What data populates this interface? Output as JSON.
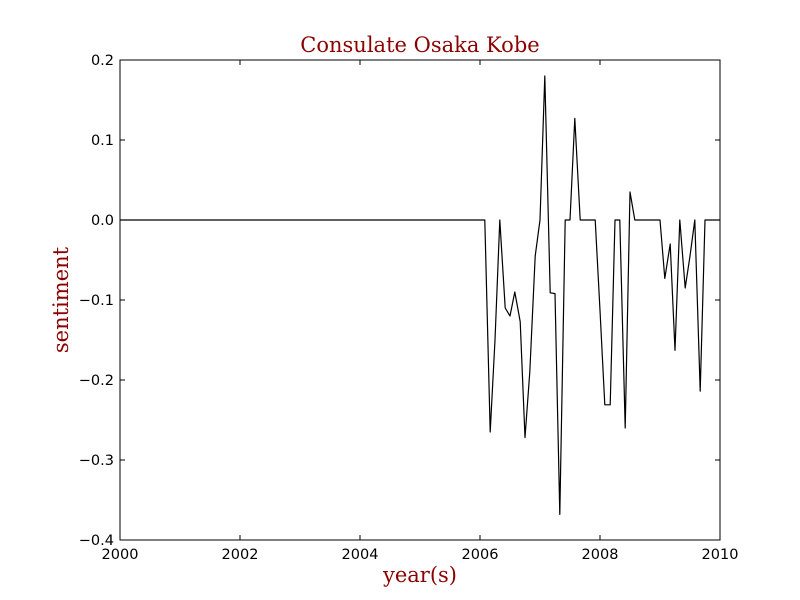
{
  "chart_data": {
    "type": "line",
    "title": "Consulate Osaka Kobe",
    "xlabel": "year(s)",
    "ylabel": "sentiment",
    "xlim": [
      2000,
      2010
    ],
    "ylim": [
      -0.4,
      0.2
    ],
    "xticks": [
      2000,
      2002,
      2004,
      2006,
      2008,
      2010
    ],
    "yticks": [
      -0.4,
      -0.3,
      -0.2,
      -0.1,
      0.0,
      0.1,
      0.2
    ],
    "xtick_labels": [
      "2000",
      "2002",
      "2004",
      "2006",
      "2008",
      "2010"
    ],
    "ytick_labels": [
      "−0.4",
      "−0.3",
      "−0.2",
      "−0.1",
      "0.0",
      "0.1",
      "0.2"
    ],
    "grid": false,
    "series": [
      {
        "name": "sentiment",
        "color": "#000000",
        "x": [
          2000.0,
          2006.08,
          2006.17,
          2006.25,
          2006.33,
          2006.42,
          2006.5,
          2006.58,
          2006.67,
          2006.75,
          2006.83,
          2006.92,
          2007.0,
          2007.08,
          2007.17,
          2007.25,
          2007.33,
          2007.42,
          2007.5,
          2007.58,
          2007.67,
          2007.75,
          2007.83,
          2007.92,
          2008.0,
          2008.08,
          2008.17,
          2008.25,
          2008.33,
          2008.42,
          2008.5,
          2008.58,
          2008.67,
          2008.75,
          2008.83,
          2008.92,
          2009.0,
          2009.08,
          2009.17,
          2009.25,
          2009.33,
          2009.42,
          2009.5,
          2009.58,
          2009.67,
          2009.75,
          2009.83,
          2009.92,
          2010.0
        ],
        "values": [
          0.0,
          0.0,
          -0.265,
          -0.15,
          0.0,
          -0.11,
          -0.12,
          -0.09,
          -0.127,
          -0.272,
          -0.19,
          -0.045,
          0.0,
          0.18,
          -0.091,
          -0.092,
          -0.368,
          0.0,
          0.0,
          0.127,
          0.0,
          0.0,
          0.0,
          0.0,
          -0.113,
          -0.231,
          -0.231,
          0.0,
          0.0,
          -0.26,
          0.035,
          0.0,
          0.0,
          0.0,
          0.0,
          0.0,
          0.0,
          -0.073,
          -0.03,
          -0.163,
          0.0,
          -0.085,
          -0.045,
          0.0,
          -0.214,
          0.0,
          0.0,
          0.0,
          0.0
        ]
      }
    ]
  }
}
